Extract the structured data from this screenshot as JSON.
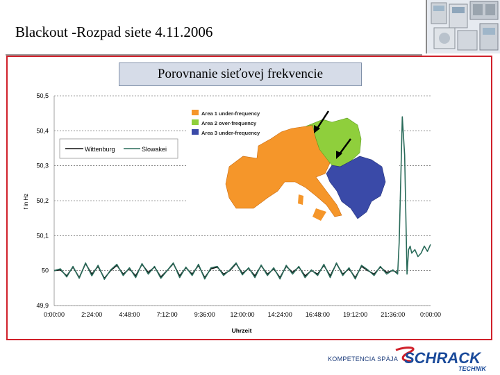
{
  "slide": {
    "title_part1": "Blackout -",
    "title_part2": "Rozpad siete 4.11.2006",
    "subtitle": "Porovnanie sieťovej frekvencie"
  },
  "footer": {
    "slogan": "KOMPETENCIA SPÁJA",
    "logo_main": "SCHRACK",
    "logo_sub": "TECHNIK",
    "colors": {
      "logo": "#1a4a9a",
      "accent": "#d0202a"
    }
  },
  "chart_data": {
    "type": "line",
    "ylabel": "f in Hz",
    "xlabel": "Uhrzeit",
    "ylim": [
      49.9,
      50.5
    ],
    "xlim": [
      0,
      24
    ],
    "yticks": [
      "49,9",
      "50",
      "50,1",
      "50,2",
      "50,3",
      "50,4",
      "50,5"
    ],
    "xticks": [
      "0:00:00",
      "2:24:00",
      "4:48:00",
      "7:12:00",
      "9:36:00",
      "12:00:00",
      "14:24:00",
      "16:48:00",
      "19:12:00",
      "21:36:00",
      "0:00:00"
    ],
    "grid": true,
    "legend_position": "top-left",
    "series": [
      {
        "name": "Wittenburg",
        "color": "#111111",
        "x": [
          0,
          0.4,
          0.8,
          1.2,
          1.6,
          2.0,
          2.4,
          2.8,
          3.2,
          3.6,
          4.0,
          4.4,
          4.8,
          5.2,
          5.6,
          6.0,
          6.4,
          6.8,
          7.2,
          7.6,
          8.0,
          8.4,
          8.8,
          9.2,
          9.6,
          10.0,
          10.4,
          10.8,
          11.2,
          11.6,
          12.0,
          12.4,
          12.8,
          13.2,
          13.6,
          14.0,
          14.4,
          14.8,
          15.2,
          15.6,
          16.0,
          16.4,
          16.8,
          17.2,
          17.6,
          18.0,
          18.4,
          18.8,
          19.2,
          19.6,
          20.0,
          20.4,
          20.8,
          21.2,
          21.6,
          21.9
        ],
        "y": [
          50.0,
          50.002,
          49.985,
          50.01,
          49.98,
          50.02,
          49.99,
          50.012,
          49.978,
          50.0,
          50.015,
          49.99,
          50.005,
          49.985,
          50.018,
          49.995,
          50.01,
          49.982,
          50.0,
          50.02,
          49.985,
          50.008,
          49.99,
          50.015,
          49.98,
          50.005,
          50.01,
          49.99,
          50.0,
          50.02,
          49.992,
          50.006,
          49.985,
          50.014,
          49.99,
          50.005,
          49.98,
          50.012,
          49.995,
          50.01,
          49.985,
          50.0,
          49.99,
          50.015,
          49.985,
          50.02,
          49.99,
          50.005,
          49.98,
          50.012,
          50.0,
          49.99,
          50.01,
          49.995,
          50.0,
          49.995
        ]
      },
      {
        "name": "Slowakei",
        "color": "#2a6b5a",
        "x": [
          0,
          0.4,
          0.8,
          1.2,
          1.6,
          2.0,
          2.4,
          2.8,
          3.2,
          3.6,
          4.0,
          4.4,
          4.8,
          5.2,
          5.6,
          6.0,
          6.4,
          6.8,
          7.2,
          7.6,
          8.0,
          8.4,
          8.8,
          9.2,
          9.6,
          10.0,
          10.4,
          10.8,
          11.2,
          11.6,
          12.0,
          12.4,
          12.8,
          13.2,
          13.6,
          14.0,
          14.4,
          14.8,
          15.2,
          15.6,
          16.0,
          16.4,
          16.8,
          17.2,
          17.6,
          18.0,
          18.4,
          18.8,
          19.2,
          19.6,
          20.0,
          20.4,
          20.8,
          21.2,
          21.6,
          21.9,
          22.0,
          22.1,
          22.2,
          22.35,
          22.5,
          22.6,
          22.7,
          22.8,
          22.9,
          23.0,
          23.2,
          23.4,
          23.6,
          23.8,
          24.0
        ],
        "y": [
          50.0,
          50.005,
          49.982,
          50.012,
          49.978,
          50.022,
          49.985,
          50.015,
          49.975,
          50.002,
          50.018,
          49.986,
          50.008,
          49.98,
          50.02,
          49.99,
          50.012,
          49.978,
          50.0,
          50.022,
          49.98,
          50.01,
          49.986,
          50.018,
          49.976,
          50.008,
          50.012,
          49.986,
          50.002,
          50.022,
          49.988,
          50.008,
          49.98,
          50.016,
          49.986,
          50.008,
          49.976,
          50.015,
          49.99,
          50.012,
          49.98,
          50.002,
          49.986,
          50.018,
          49.98,
          50.022,
          49.986,
          50.008,
          49.976,
          50.015,
          50.002,
          49.986,
          50.012,
          49.99,
          50.002,
          49.99,
          50.08,
          50.26,
          50.44,
          50.33,
          49.99,
          50.06,
          50.07,
          50.05,
          50.055,
          50.06,
          50.04,
          50.05,
          50.07,
          50.055,
          50.075
        ]
      }
    ],
    "map": {
      "legend": [
        {
          "label": "Area 1 under-frequency",
          "color": "#f5962a"
        },
        {
          "label": "Area 2 over-frequency",
          "color": "#8fcf3c"
        },
        {
          "label": "Area 3 under-frequency",
          "color": "#3a4aa8"
        }
      ]
    }
  }
}
